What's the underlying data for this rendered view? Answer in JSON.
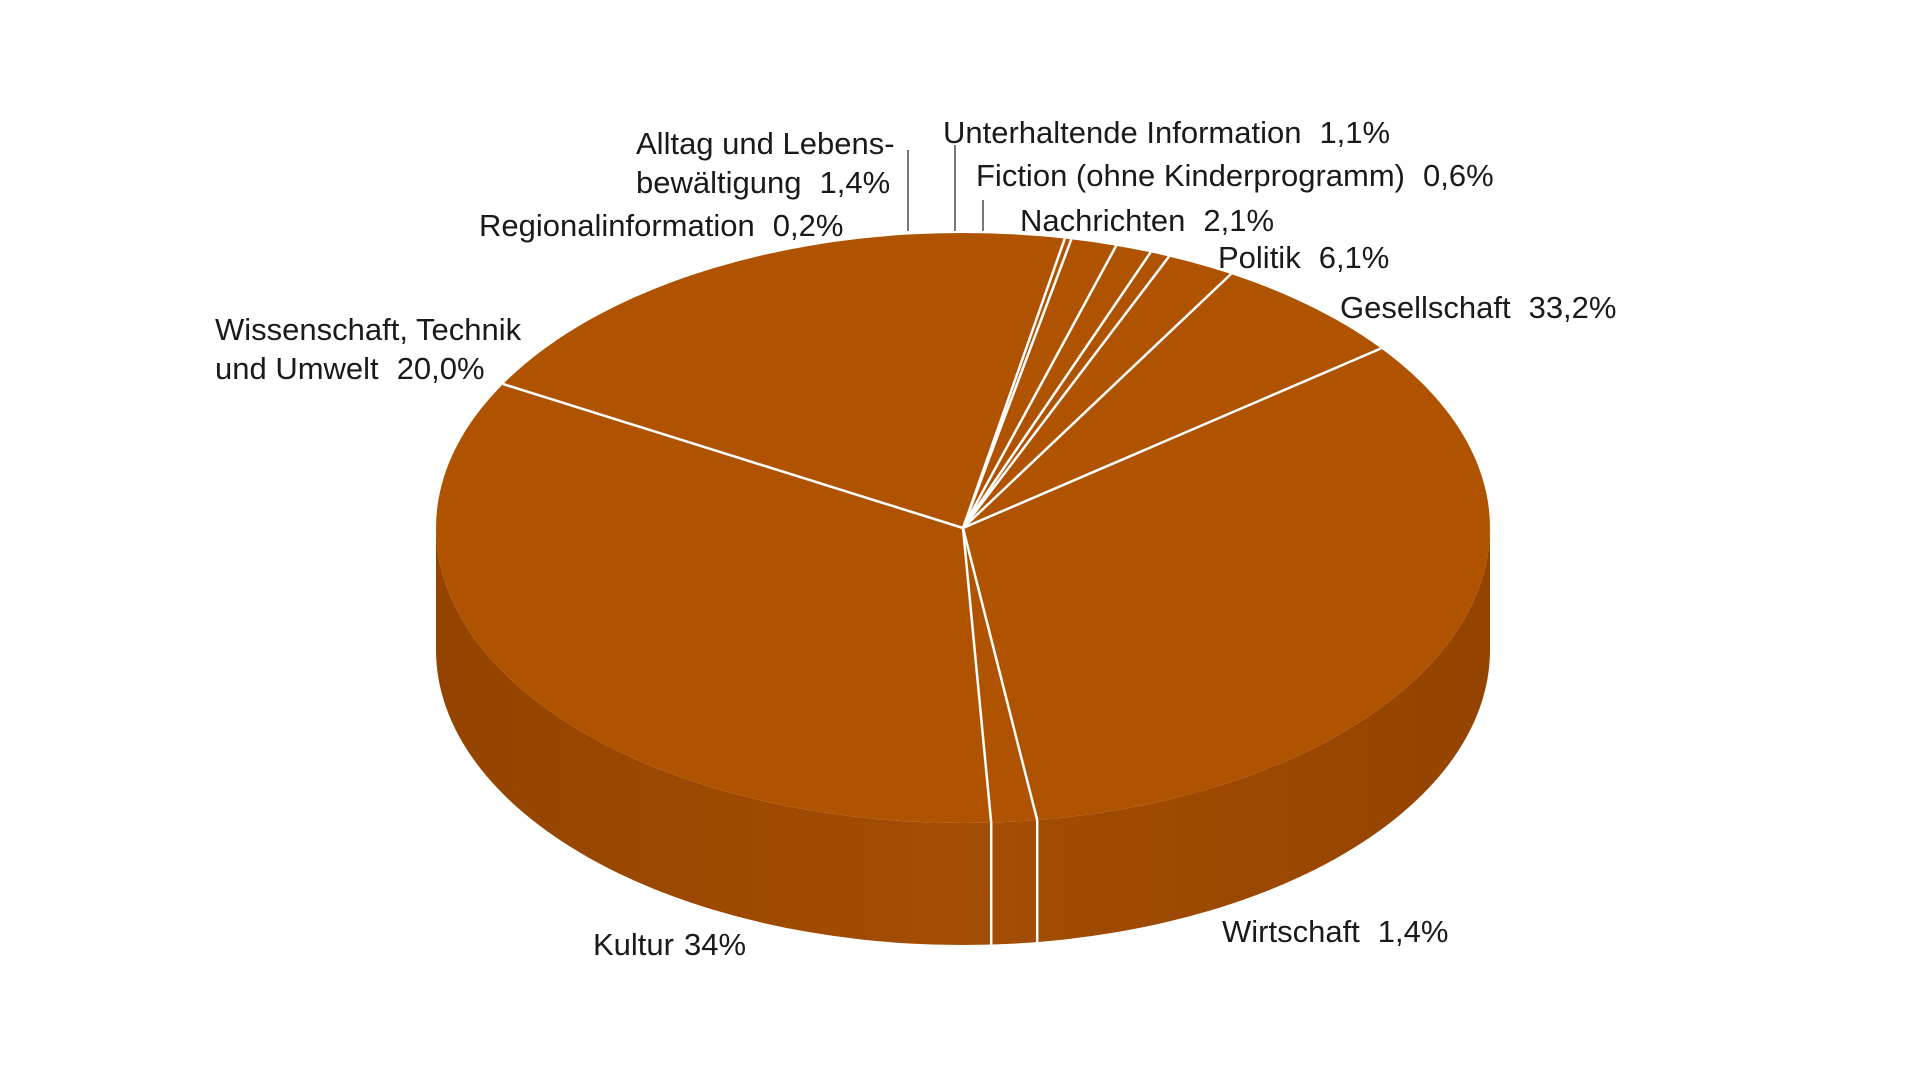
{
  "colors": {
    "top": "#b05300",
    "side": "#944400",
    "side_highlight": "#a34d04",
    "separator": "#ffffff"
  },
  "chart_data": {
    "type": "pie",
    "style": "3d",
    "slices": [
      {
        "label": "Gesellschaft",
        "value": 33.2,
        "value_label": "33,2%"
      },
      {
        "label": "Wirtschaft",
        "value": 1.4,
        "value_label": "1,4%"
      },
      {
        "label": "Kultur",
        "value": 34,
        "value_label": "34%"
      },
      {
        "label": "Wissenschaft, Technik und Umwelt",
        "label_lines": [
          "Wissenschaft, Technik",
          "und Umwelt"
        ],
        "value": 20.0,
        "value_label": "20,0%"
      },
      {
        "label": "Regionalinformation",
        "value": 0.2,
        "value_label": "0,2%"
      },
      {
        "label": "Alltag und Lebensbewältigung",
        "label_lines": [
          "Alltag und Lebens-",
          "bewältigung"
        ],
        "value": 1.4,
        "value_label": "1,4%"
      },
      {
        "label": "Unterhaltende Information",
        "value": 1.1,
        "value_label": "1,1%"
      },
      {
        "label": "Fiction (ohne Kinderprogramm)",
        "value": 0.6,
        "value_label": "0,6%"
      },
      {
        "label": "Nachrichten",
        "value": 2.1,
        "value_label": "2,1%"
      },
      {
        "label": "Politik",
        "value": 6.1,
        "value_label": "6,1%"
      }
    ]
  }
}
